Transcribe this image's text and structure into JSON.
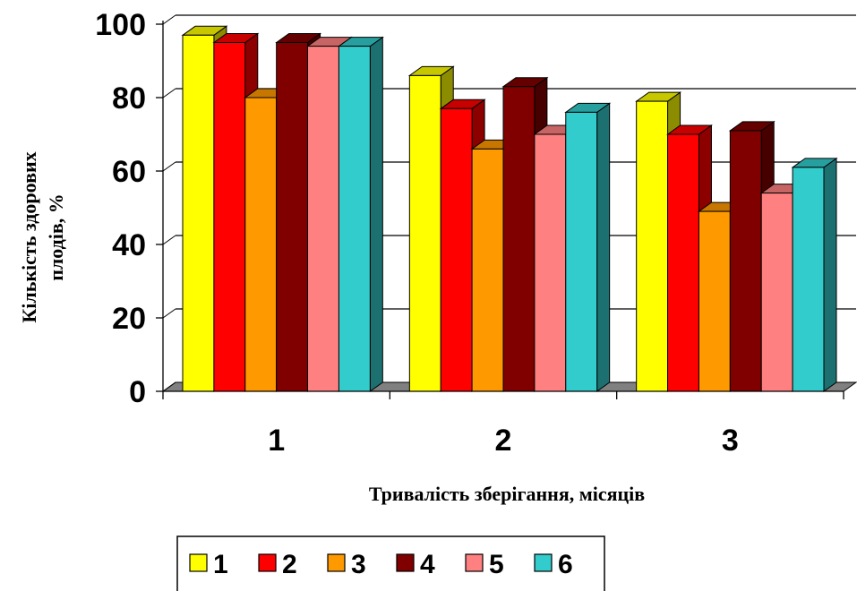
{
  "chart_data": {
    "type": "bar",
    "title": "",
    "xlabel": "Тривалість зберігання, місяців",
    "ylabel_line1": "Кількість здорових",
    "ylabel_line2": "плодів, %",
    "categories": [
      "1",
      "2",
      "3"
    ],
    "ylim": [
      0,
      100
    ],
    "yticks": [
      0,
      20,
      40,
      60,
      80,
      100
    ],
    "grid": true,
    "legend_position": "bottom",
    "series": [
      {
        "name": "1",
        "color": "#FFFF00",
        "values": [
          97,
          86,
          79
        ]
      },
      {
        "name": "2",
        "color": "#FF0000",
        "values": [
          95,
          77,
          70
        ]
      },
      {
        "name": "3",
        "color": "#FF9900",
        "values": [
          80,
          66,
          49
        ]
      },
      {
        "name": "4",
        "color": "#800000",
        "values": [
          95,
          83,
          71
        ]
      },
      {
        "name": "5",
        "color": "#FF8080",
        "values": [
          94,
          70,
          54
        ]
      },
      {
        "name": "6",
        "color": "#33CCCC",
        "values": [
          94,
          76,
          61
        ]
      }
    ]
  }
}
